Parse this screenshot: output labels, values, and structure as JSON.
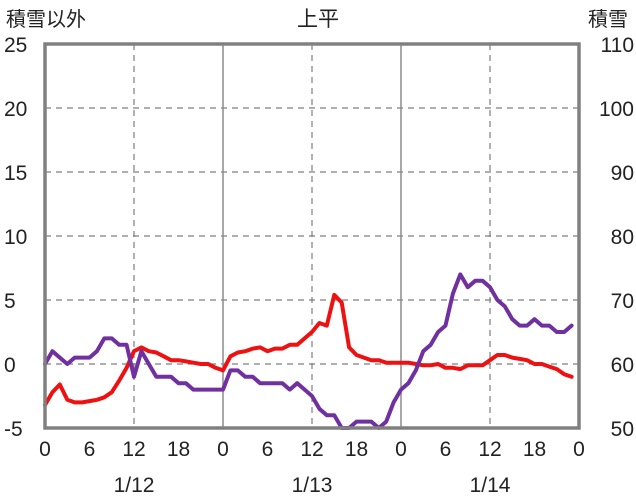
{
  "chart_data": {
    "type": "line",
    "title": "上平",
    "y_left_label": "積雪以外",
    "y_right_label": "積雪",
    "ylim_left": [
      -5,
      25
    ],
    "ylim_right": [
      50,
      110
    ],
    "yticks_left": [
      "25",
      "20",
      "15",
      "10",
      "5",
      "0",
      "-5"
    ],
    "yticks_right": [
      "110",
      "100",
      "90",
      "80",
      "70",
      "60",
      "50"
    ],
    "xticks": [
      "0",
      "6",
      "12",
      "18",
      "0",
      "6",
      "12",
      "18",
      "0",
      "6",
      "12",
      "18",
      "0"
    ],
    "xtick_hours": [
      0,
      6,
      12,
      18,
      24,
      30,
      36,
      42,
      48,
      54,
      60,
      66,
      72
    ],
    "xlim": [
      0,
      72
    ],
    "date_labels": [
      {
        "text": "1/12",
        "hour": 12
      },
      {
        "text": "1/13",
        "hour": 36
      },
      {
        "text": "1/14",
        "hour": 60
      }
    ],
    "grid": true,
    "series": [
      {
        "axis": "left",
        "color": "#ee1111",
        "hours": [
          0,
          1,
          2,
          3,
          4,
          5,
          6,
          7,
          8,
          9,
          10,
          11,
          12,
          13,
          14,
          15,
          16,
          17,
          18,
          19,
          20,
          21,
          22,
          23,
          24,
          25,
          26,
          27,
          28,
          29,
          30,
          31,
          32,
          33,
          34,
          35,
          36,
          37,
          38,
          39,
          40,
          41,
          42,
          43,
          44,
          45,
          46,
          47,
          48,
          49,
          50,
          51,
          52,
          53,
          54,
          55,
          56,
          57,
          58,
          59,
          60,
          61,
          62,
          63,
          64,
          65,
          66,
          67,
          68,
          69,
          70,
          71
        ],
        "values": [
          -3.2,
          -2.2,
          -1.6,
          -2.8,
          -3.0,
          -3.0,
          -2.9,
          -2.8,
          -2.6,
          -2.2,
          -1.3,
          -0.3,
          1.0,
          1.3,
          1.0,
          0.9,
          0.6,
          0.3,
          0.3,
          0.2,
          0.1,
          0.0,
          0.0,
          -0.3,
          -0.5,
          0.6,
          0.9,
          1.0,
          1.2,
          1.3,
          1.0,
          1.2,
          1.2,
          1.5,
          1.5,
          2.0,
          2.5,
          3.2,
          3.0,
          5.4,
          4.8,
          1.3,
          0.7,
          0.5,
          0.3,
          0.3,
          0.1,
          0.1,
          0.1,
          0.1,
          0.0,
          -0.1,
          -0.1,
          0.0,
          -0.3,
          -0.3,
          -0.4,
          -0.1,
          -0.1,
          -0.1,
          0.3,
          0.7,
          0.7,
          0.5,
          0.4,
          0.3,
          0.0,
          0.0,
          -0.2,
          -0.4,
          -0.8,
          -1.0
        ]
      },
      {
        "axis": "right",
        "color": "#7030a0",
        "hours": [
          0,
          1,
          2,
          3,
          4,
          5,
          6,
          7,
          8,
          9,
          10,
          11,
          12,
          13,
          14,
          15,
          16,
          17,
          18,
          19,
          20,
          21,
          22,
          23,
          24,
          25,
          26,
          27,
          28,
          29,
          30,
          31,
          32,
          33,
          34,
          35,
          36,
          37,
          38,
          39,
          40,
          41,
          42,
          43,
          44,
          45,
          46,
          47,
          48,
          49,
          50,
          51,
          52,
          53,
          54,
          55,
          56,
          57,
          58,
          59,
          60,
          61,
          62,
          63,
          64,
          65,
          66,
          67,
          68,
          69,
          70,
          71
        ],
        "values": [
          60,
          62,
          61,
          60,
          61,
          61,
          61,
          62,
          64,
          64,
          63,
          63,
          58,
          62,
          60,
          58,
          58,
          58,
          57,
          57,
          56,
          56,
          56,
          56,
          56,
          59,
          59,
          58,
          58,
          57,
          57,
          57,
          57,
          56,
          57,
          56,
          55,
          53,
          52,
          52,
          50,
          50,
          51,
          51,
          51,
          50,
          51,
          54,
          56,
          57,
          59,
          62,
          63,
          65,
          66,
          71,
          74,
          72,
          73,
          73,
          72,
          70,
          69,
          67,
          66,
          66,
          67,
          66,
          66,
          65,
          65,
          66
        ]
      }
    ]
  }
}
